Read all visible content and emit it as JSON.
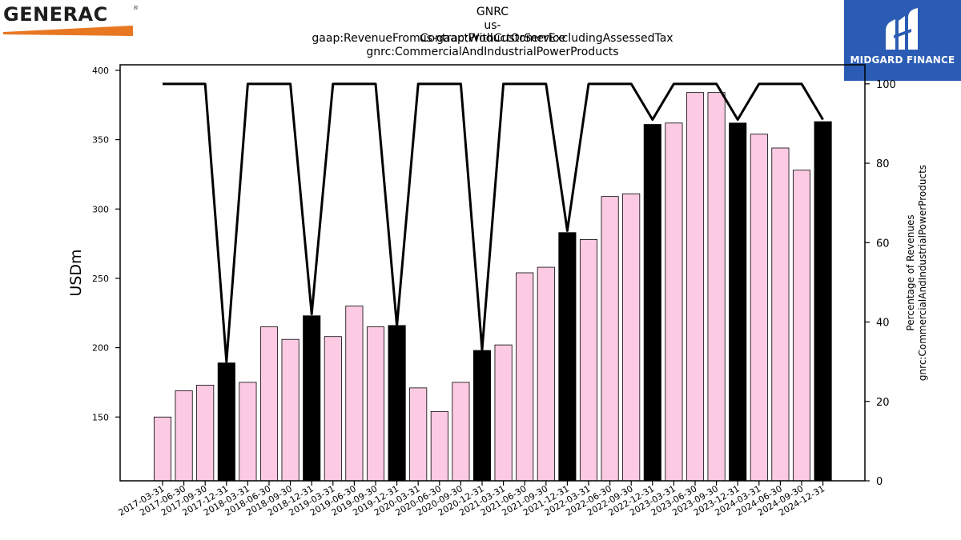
{
  "header": {
    "title_lines": [
      "GNRC",
      "us-gaap:RevenueFromContractWithCustomerExcludingAssessedTax",
      "us-gaap:ProductOrService",
      "gnrc:CommercialAndIndustrialPowerProducts"
    ]
  },
  "logos": {
    "left_text": "GENERAC",
    "left_reg": "®",
    "right_text": "MIDGARD FINANCE"
  },
  "colors": {
    "bar_default": "#fccae3",
    "bar_q4": "#000000",
    "line": "#000000",
    "generac_orange": "#e87722",
    "midgard_blue": "#2b5cb4"
  },
  "chart_data": {
    "type": "bar",
    "categories": [
      "2017-03-31",
      "2017-06-30",
      "2017-09-30",
      "2017-12-31",
      "2018-03-31",
      "2018-06-30",
      "2018-09-30",
      "2018-12-31",
      "2019-03-31",
      "2019-06-30",
      "2019-09-30",
      "2019-12-31",
      "2020-03-31",
      "2020-06-30",
      "2020-09-30",
      "2020-12-31",
      "2021-03-31",
      "2021-06-30",
      "2021-09-30",
      "2021-12-31",
      "2022-03-31",
      "2022-06-30",
      "2022-09-30",
      "2022-12-31",
      "2023-03-31",
      "2023-06-30",
      "2023-09-30",
      "2023-12-31",
      "2024-03-31",
      "2024-06-30",
      "2024-09-30",
      "2024-12-31"
    ],
    "series": [
      {
        "axis": "left",
        "values": [
          150,
          169,
          173,
          189,
          175,
          215,
          206,
          223,
          208,
          230,
          215,
          216,
          171,
          154,
          175,
          198,
          202,
          254,
          258,
          283,
          278,
          309,
          311,
          361,
          362,
          384,
          384,
          362,
          354,
          344,
          328,
          363
        ]
      },
      {
        "axis": "right",
        "type": "line",
        "values": [
          100,
          100,
          100,
          30,
          100,
          100,
          100,
          42,
          100,
          100,
          100,
          39,
          100,
          100,
          100,
          33,
          100,
          100,
          100,
          63,
          100,
          100,
          100,
          91,
          100,
          100,
          100,
          91,
          100,
          100,
          100,
          91
        ]
      }
    ],
    "highlight_every": 4,
    "ylabel": "USDm",
    "ylabel_right": [
      "Percentage of Revenues",
      "gnrc:CommercialAndIndustrialPowerProducts"
    ],
    "ylim": [
      104,
      404
    ],
    "ylim_right": [
      0,
      104.8
    ],
    "yticks": [
      150,
      200,
      250,
      300,
      350,
      400
    ],
    "yticks_right": [
      0,
      20,
      40,
      60,
      80,
      100
    ]
  }
}
